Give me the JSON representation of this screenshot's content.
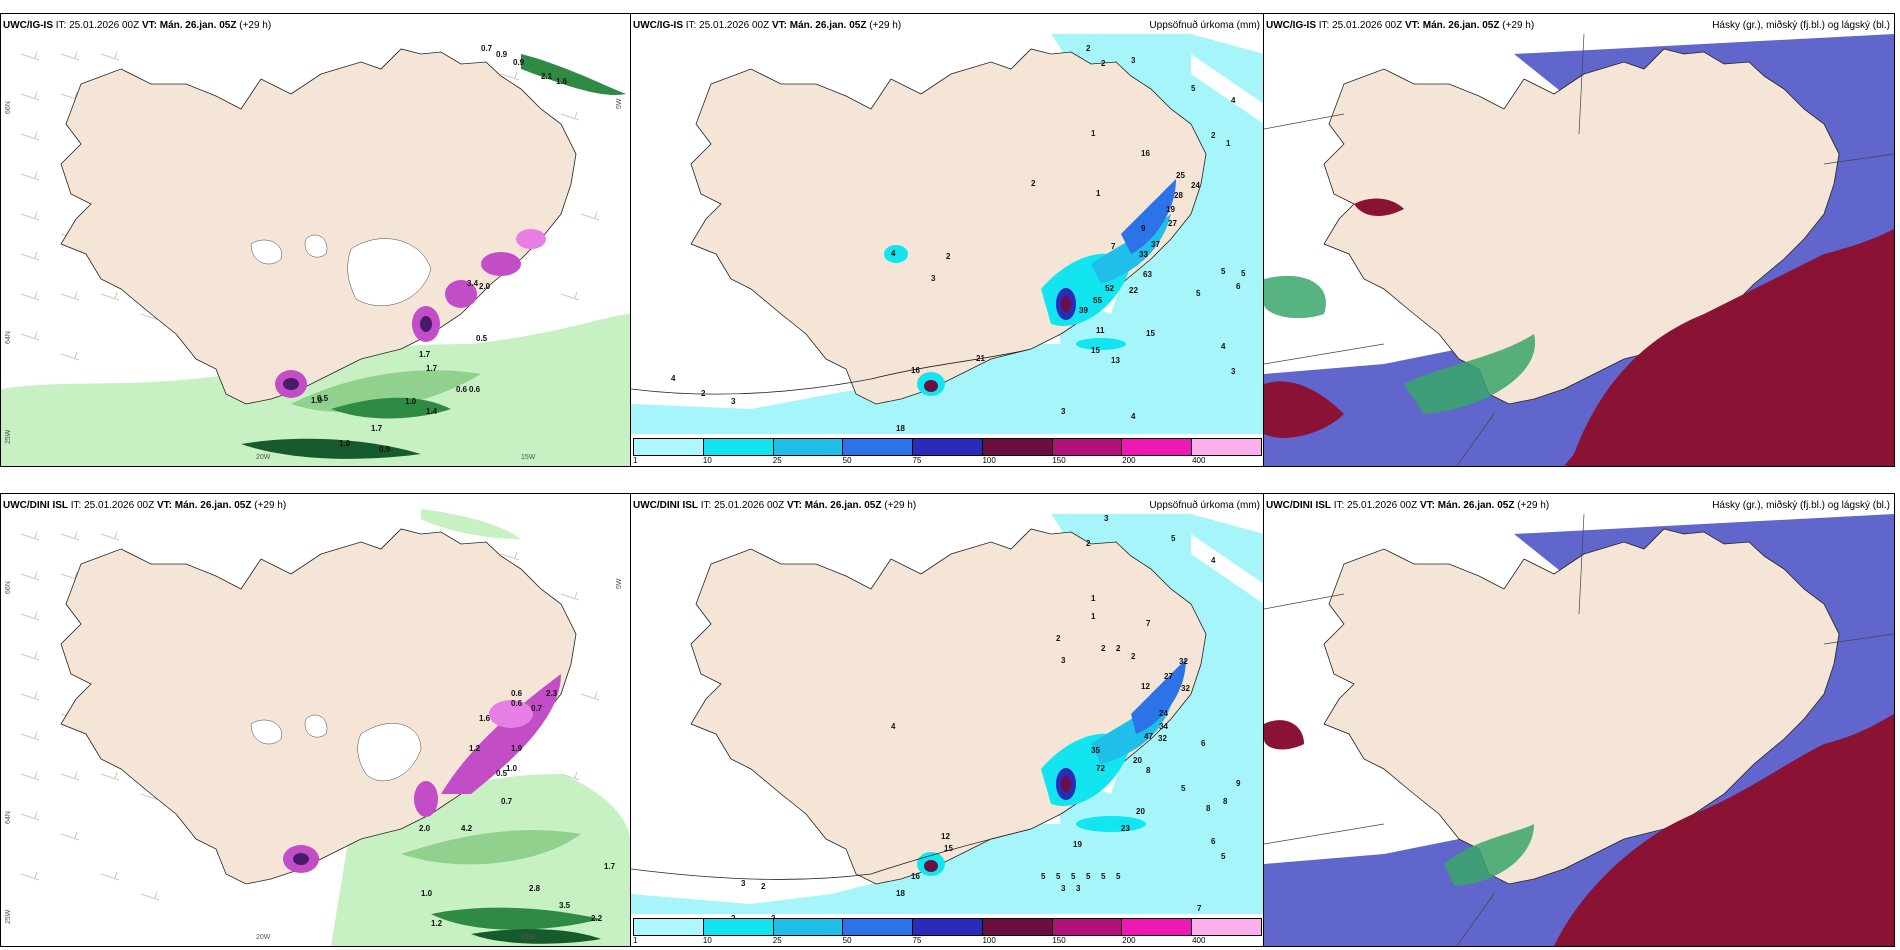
{
  "rows": [
    {
      "model": "UWC/IG-IS",
      "it_label": "IT: 25.01.2026 00Z",
      "vt_label": "VT: Mán. 26.jan. 05Z",
      "lead": "(+29 h)",
      "wind_values": [
        "0.7",
        "0.9",
        "0.9",
        "2.1",
        "1.6",
        "0.5",
        "1.7",
        "1.7",
        "1.0",
        "1.4",
        "0.6",
        "0.6",
        "1.0",
        "0.9",
        "0.5",
        "1.0",
        "1.7",
        "3.4",
        "2.0"
      ],
      "precip_values": [
        "2",
        "2",
        "3",
        "5",
        "4",
        "1",
        "2",
        "2",
        "1",
        "16",
        "25",
        "24",
        "28",
        "19",
        "27",
        "37",
        "33",
        "63",
        "22",
        "9",
        "7",
        "52",
        "55",
        "39",
        "11",
        "15",
        "13",
        "15",
        "21",
        "16",
        "18",
        "4",
        "2",
        "3",
        "3",
        "4",
        "2",
        "5",
        "6",
        "4",
        "3",
        "1",
        "4",
        "5",
        "5",
        "3"
      ],
      "lat_labels": [
        "66N",
        "64N"
      ],
      "lon_labels": [
        "20W",
        "15W"
      ],
      "edge_labels": [
        "25W",
        "5W"
      ]
    },
    {
      "model": "UWC/DINI ISL",
      "it_label": "IT: 25.01.2026 00Z",
      "vt_label": "VT: Mán. 26.jan. 05Z",
      "lead": "(+29 h)",
      "wind_values": [
        "0.6",
        "1.6",
        "1.2",
        "1.0",
        "1.9",
        "0.7",
        "0.5",
        "0.7",
        "3.5",
        "2.2",
        "2.8",
        "1.2",
        "4.2",
        "1.7",
        "2.0",
        "1.0",
        "0.6",
        "2.3"
      ],
      "precip_values": [
        "3",
        "2",
        "5",
        "4",
        "1",
        "1",
        "2",
        "7",
        "2",
        "2",
        "2",
        "3",
        "12",
        "27",
        "32",
        "32",
        "24",
        "34",
        "47",
        "32",
        "35",
        "72",
        "20",
        "8",
        "9",
        "6",
        "23",
        "20",
        "19",
        "15",
        "12",
        "18",
        "16",
        "4",
        "3",
        "2",
        "2",
        "2",
        "5",
        "5",
        "5",
        "5",
        "5",
        "5",
        "3",
        "3",
        "7",
        "8",
        "8",
        "5",
        "6",
        "5"
      ],
      "lat_labels": [
        "66N",
        "64N"
      ],
      "lon_labels": [
        "20W",
        "15W"
      ],
      "edge_labels": [
        "25W",
        "5W"
      ]
    }
  ],
  "precip_label": "Uppsöfnuð úrkoma (mm)",
  "cloud_label": "Hásky (gr.), miðský (fj.bl.) og lágský (bl.)",
  "legend": {
    "ticks": [
      "1",
      "10",
      "25",
      "50",
      "75",
      "100",
      "150",
      "200",
      "400"
    ],
    "colors": [
      "#aff7ff",
      "#12e5f0",
      "#1fbfe9",
      "#2d73e8",
      "#2a2bb8",
      "#6a0f3f",
      "#b0127a",
      "#ee19b0",
      "#f9b0ec"
    ]
  },
  "colors": {
    "land": "#f4e5d6",
    "sea_precip": "#a6f5fb",
    "low_cloud": "#5055c8",
    "mid_cloud": "#3aa66a",
    "high_cloud": "#8a1235",
    "green_light": "#c7f0c3",
    "green_dark": "#165b2b"
  }
}
